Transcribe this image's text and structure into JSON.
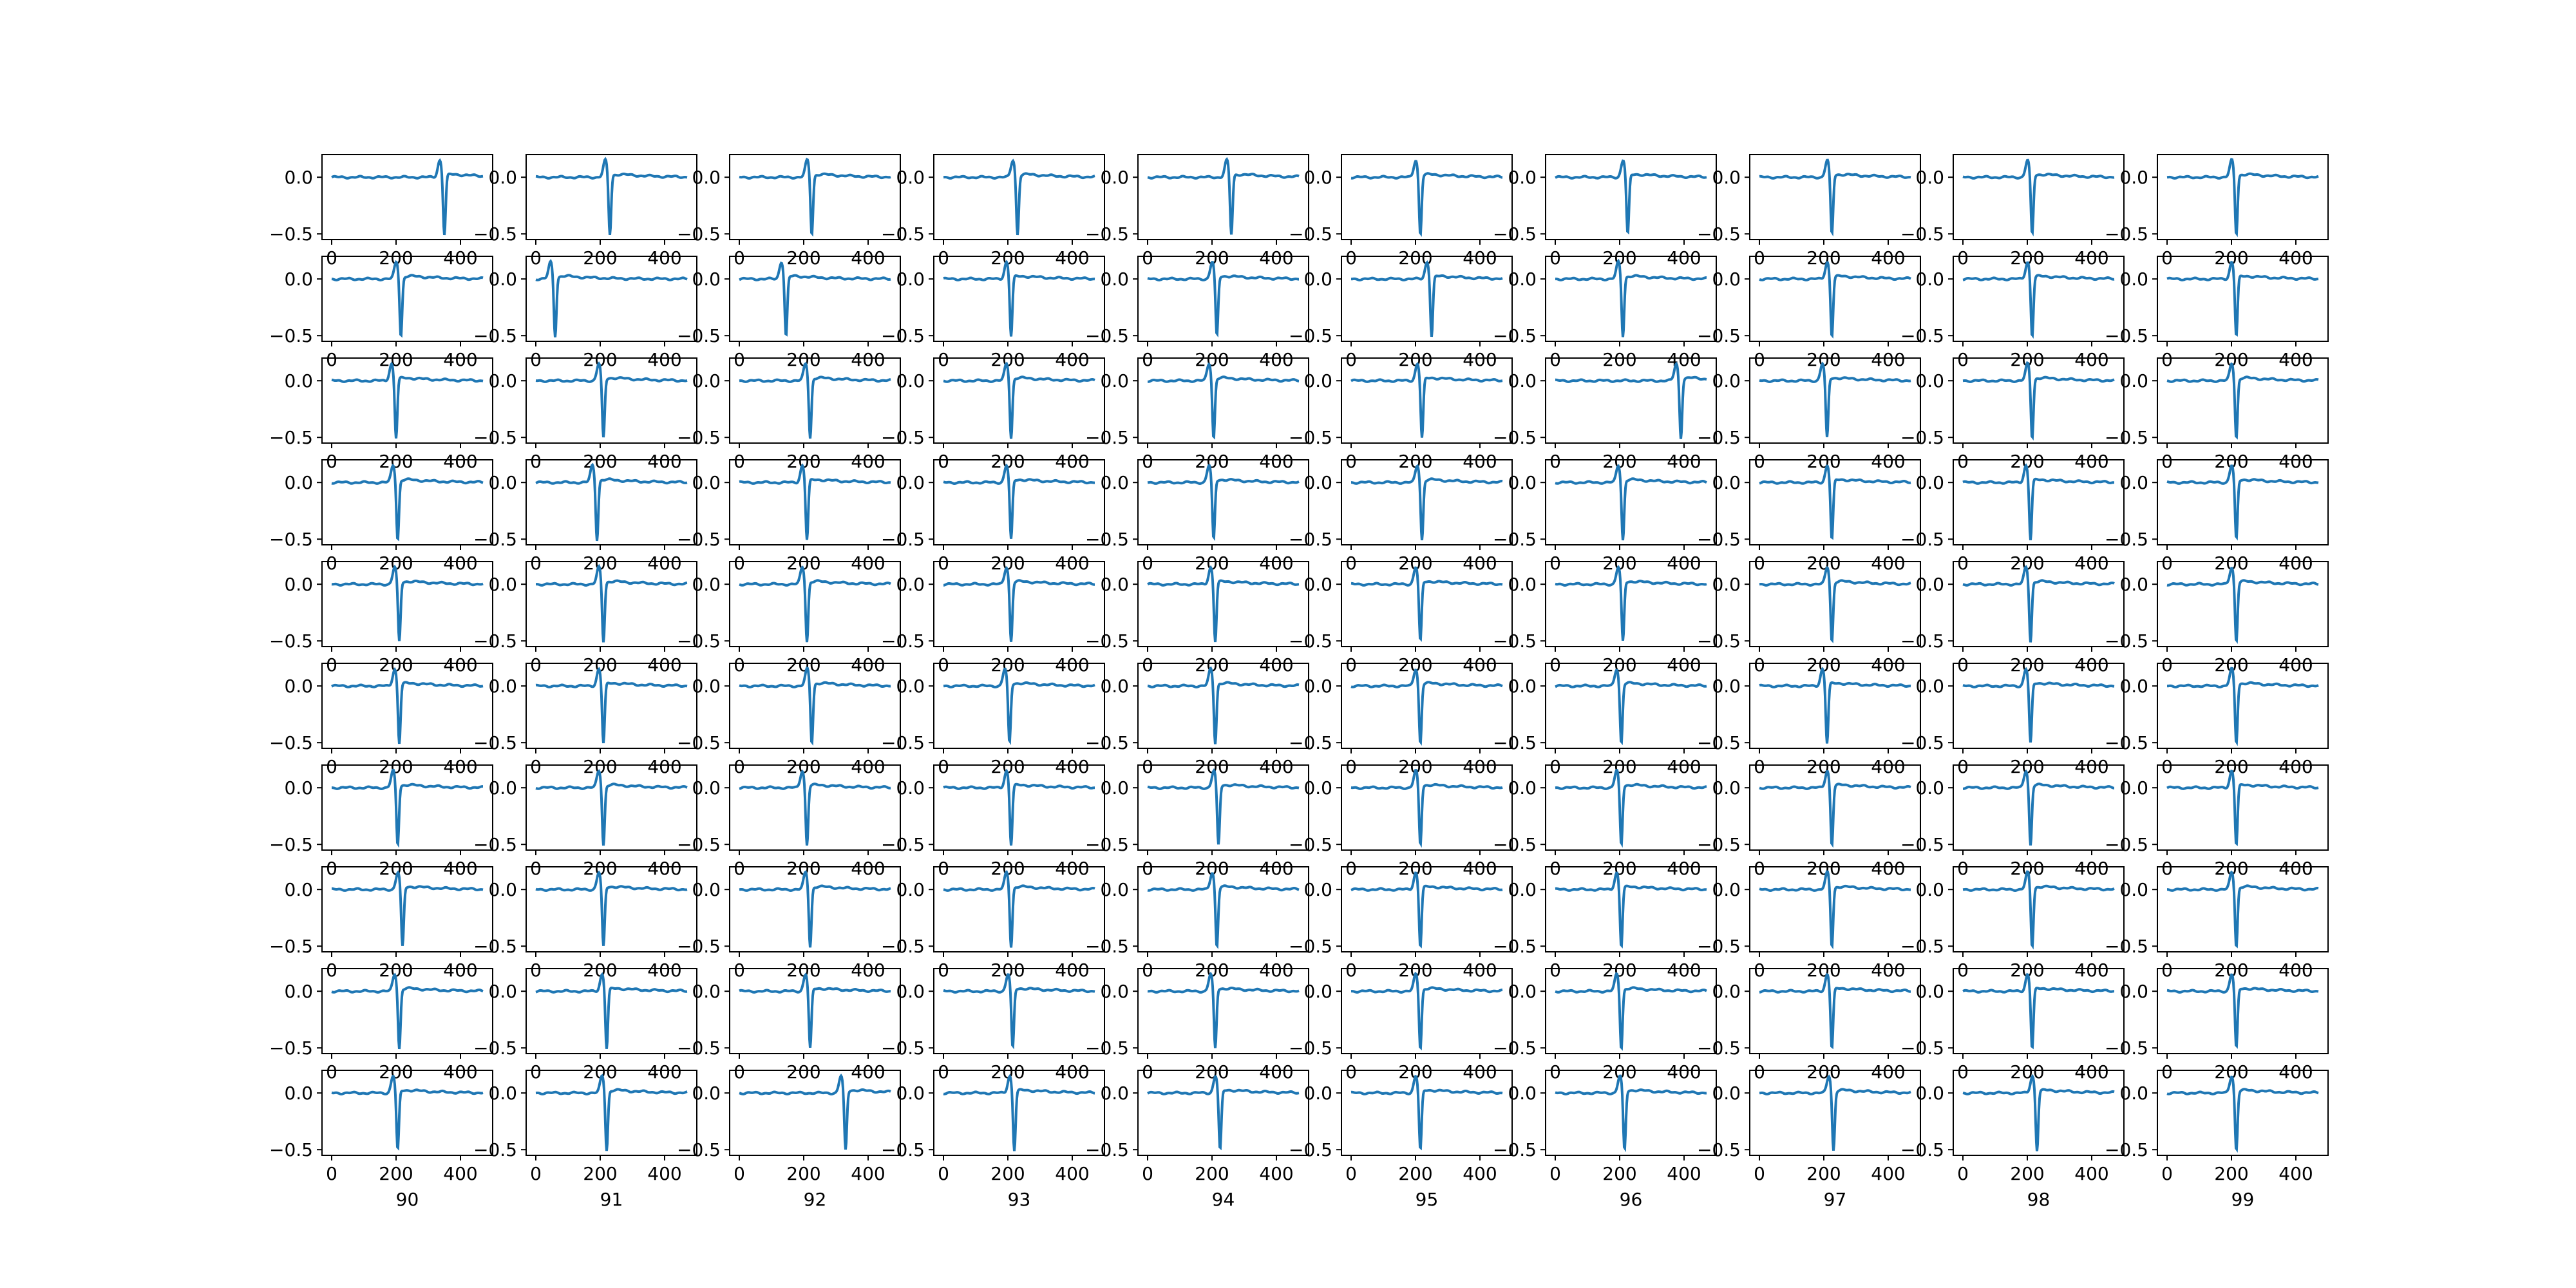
{
  "chart_data": {
    "type": "line",
    "layout": "small-multiples grid, 10 rows x 10 columns",
    "x_range": [
      0,
      470
    ],
    "xticks": [
      0,
      200,
      400
    ],
    "xtick_labels": [
      "0",
      "200",
      "400"
    ],
    "ylim": [
      -0.55,
      0.2
    ],
    "yticks": [
      0.0,
      -0.5
    ],
    "ytick_labels": [
      "0.0",
      "−0.5"
    ],
    "series_color": "#1f77b4",
    "subplot_xlabels": [
      "90",
      "91",
      "92",
      "93",
      "94",
      "95",
      "96",
      "97",
      "98",
      "99"
    ],
    "waveform_description": "each subplot shows one spike-like waveform: flat baseline near 0.0, small positive peak (~0.15) followed by sharp negative trough (~-0.5), then slow recovery near 0.0",
    "peak_positions": [
      [
        350,
        230,
        225,
        230,
        260,
        215,
        225,
        225,
        215,
        215
      ],
      [
        215,
        60,
        145,
        210,
        215,
        250,
        210,
        225,
        215,
        215
      ],
      [
        200,
        210,
        220,
        210,
        205,
        220,
        390,
        210,
        215,
        215
      ],
      [
        205,
        190,
        210,
        210,
        205,
        220,
        210,
        225,
        210,
        215
      ],
      [
        210,
        210,
        210,
        210,
        210,
        215,
        210,
        225,
        210,
        215
      ],
      [
        210,
        210,
        225,
        205,
        210,
        215,
        205,
        210,
        210,
        215
      ],
      [
        205,
        210,
        210,
        210,
        220,
        215,
        205,
        225,
        210,
        215
      ],
      [
        220,
        210,
        220,
        210,
        215,
        215,
        205,
        225,
        215,
        215
      ],
      [
        210,
        220,
        220,
        215,
        210,
        215,
        205,
        225,
        215,
        215
      ],
      [
        205,
        220,
        330,
        220,
        225,
        215,
        215,
        230,
        230,
        215
      ]
    ]
  }
}
